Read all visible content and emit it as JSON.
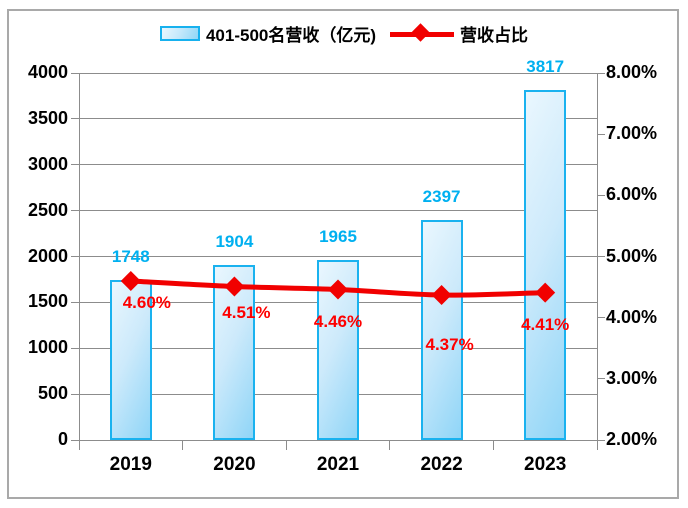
{
  "chart_data": {
    "type": "combo-bar-line",
    "title": "",
    "categories": [
      "2019",
      "2020",
      "2021",
      "2022",
      "2023"
    ],
    "series": [
      {
        "name": "401-500名营收（亿元)",
        "type": "bar",
        "axis": "left",
        "values": [
          1748,
          1904,
          1965,
          2397,
          3817
        ],
        "data_labels": [
          "1748",
          "1904",
          "1965",
          "2397",
          "3817"
        ]
      },
      {
        "name": "营收占比",
        "type": "line",
        "axis": "right",
        "values": [
          4.6,
          4.51,
          4.46,
          4.37,
          4.41
        ],
        "data_labels": [
          "4.60%",
          "4.51%",
          "4.46%",
          "4.37%",
          "4.41%"
        ]
      }
    ],
    "left_axis": {
      "min": 0,
      "max": 4000,
      "step": 500,
      "tick_labels": [
        "0",
        "500",
        "1000",
        "1500",
        "2000",
        "2500",
        "3000",
        "3500",
        "4000"
      ]
    },
    "right_axis": {
      "min": 2,
      "max": 8,
      "step": 1,
      "tick_labels": [
        "2.00%",
        "3.00%",
        "4.00%",
        "5.00%",
        "6.00%",
        "7.00%",
        "8.00%"
      ]
    },
    "legend_position": "top",
    "grid": true
  },
  "colors": {
    "bar_border": "#1ab2ef",
    "bar_fill_light": "#eaf7fe",
    "bar_fill_dark": "#8fd5f7",
    "bar_label": "#00b0f0",
    "line": "#f10000",
    "line_label": "#fe0000",
    "grid": "#8c8c8c",
    "axis_text": "#000000",
    "frame": "#a9a9a9",
    "background": "#ffffff"
  }
}
